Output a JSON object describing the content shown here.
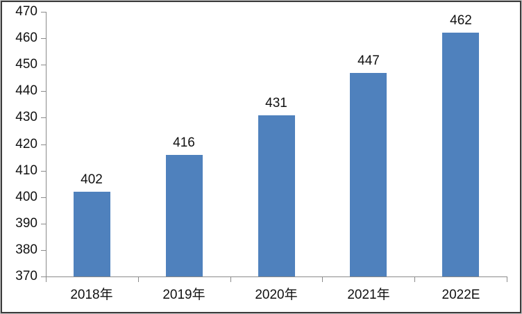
{
  "chart_data": {
    "type": "bar",
    "categories": [
      "2018年",
      "2019年",
      "2020年",
      "2021年",
      "2022E"
    ],
    "values": [
      402,
      416,
      431,
      447,
      462
    ],
    "data_labels": [
      "402",
      "416",
      "431",
      "447",
      "462"
    ],
    "title": "",
    "xlabel": "",
    "ylabel": "",
    "ylim": [
      370,
      470
    ],
    "ytick_step": 10,
    "ytick_labels": [
      "370",
      "380",
      "390",
      "400",
      "410",
      "420",
      "430",
      "440",
      "450",
      "460",
      "470"
    ],
    "grid": false,
    "legend": false,
    "bar_color": "#4F81BD",
    "axis_color": "#8A8A8A",
    "text_color": "#111111",
    "background_color": "#FFFFFF",
    "frame_border_color": "#3B3B3B"
  }
}
